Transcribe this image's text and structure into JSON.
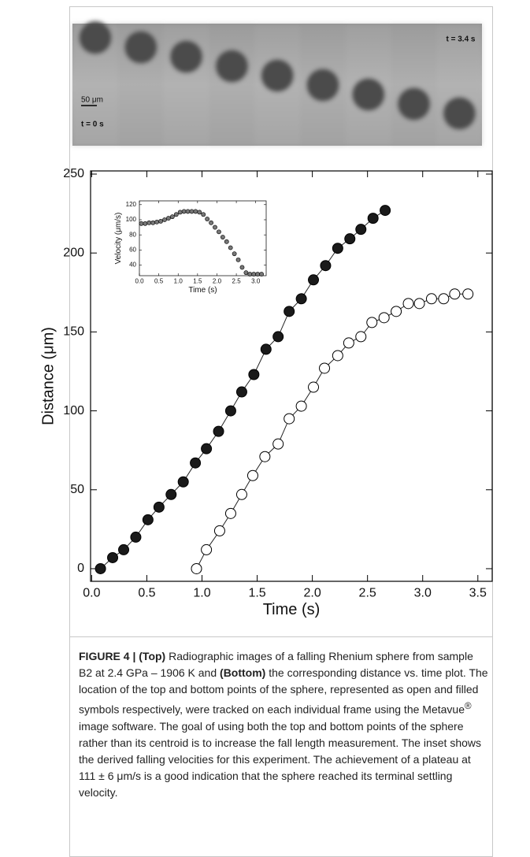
{
  "image_strip": {
    "time_end": "t = 3.4 s",
    "scale": "50 μm",
    "time_start": "t = 0 s"
  },
  "chart_data": [
    {
      "type": "line",
      "xlabel": "Time (s)",
      "ylabel": "Distance (μm)",
      "xlim": [
        -0.01,
        3.63
      ],
      "ylim": [
        -8,
        252
      ],
      "xticks": [
        {
          "value": 0,
          "label": "0.0"
        },
        {
          "value": 0.5,
          "label": "0.5"
        },
        {
          "value": 1,
          "label": "1.0"
        },
        {
          "value": 1.5,
          "label": "1.5"
        },
        {
          "value": 2,
          "label": "2.0"
        },
        {
          "value": 2.5,
          "label": "2.5"
        },
        {
          "value": 3,
          "label": "3.0"
        },
        {
          "value": 3.5,
          "label": "3.5"
        }
      ],
      "yticks": [
        0,
        50,
        100,
        150,
        200,
        250
      ],
      "lines": true,
      "series": [
        {
          "fill": "#1a1a1a",
          "x": [
            0.08,
            0.19,
            0.29,
            0.4,
            0.51,
            0.61,
            0.72,
            0.83,
            0.94,
            1.04,
            1.15,
            1.26,
            1.36,
            1.47,
            1.58,
            1.69,
            1.79,
            1.9,
            2.01,
            2.12,
            2.23,
            2.34,
            2.44,
            2.55,
            2.66
          ],
          "values": [
            0,
            7,
            12,
            20,
            31,
            39,
            47,
            55,
            67,
            76,
            87,
            100,
            112,
            123,
            139,
            147,
            163,
            171,
            183,
            192,
            203,
            209,
            215,
            222,
            227
          ]
        },
        {
          "fill": "#ffffff",
          "x": [
            0.95,
            1.04,
            1.16,
            1.26,
            1.36,
            1.46,
            1.57,
            1.69,
            1.79,
            1.9,
            2.01,
            2.11,
            2.23,
            2.33,
            2.44,
            2.54,
            2.65,
            2.76,
            2.87,
            2.97,
            3.08,
            3.19,
            3.29,
            3.41
          ],
          "values": [
            0,
            12,
            24,
            35,
            47,
            59,
            71,
            79,
            95,
            103,
            115,
            127,
            135,
            143,
            147,
            156,
            159,
            163,
            168,
            168,
            171,
            171,
            174,
            174
          ]
        }
      ]
    },
    {
      "type": "scatter",
      "xlabel": "Time (s)",
      "ylabel": "Velocity (μm/s)",
      "xlim": [
        0,
        3.27
      ],
      "ylim": [
        26,
        125
      ],
      "xticks": [
        {
          "value": 0,
          "label": "0.0"
        },
        {
          "value": 0.5,
          "label": "0.5"
        },
        {
          "value": 1,
          "label": "1.0"
        },
        {
          "value": 1.5,
          "label": "1.5"
        },
        {
          "value": 2,
          "label": "2.0"
        },
        {
          "value": 2.5,
          "label": "2.5"
        },
        {
          "value": 3,
          "label": "3.0"
        }
      ],
      "yticks": [
        40,
        60,
        80,
        100,
        120
      ],
      "lines": false,
      "series": [
        {
          "fill": "#777777",
          "x": [
            0.05,
            0.15,
            0.25,
            0.35,
            0.45,
            0.55,
            0.65,
            0.75,
            0.85,
            0.95,
            1.05,
            1.15,
            1.25,
            1.35,
            1.45,
            1.55,
            1.65,
            1.75,
            1.85,
            1.95,
            2.05,
            2.15,
            2.25,
            2.35,
            2.45,
            2.55,
            2.65,
            2.75,
            2.85,
            2.95,
            3.05,
            3.15
          ],
          "values": [
            95,
            95,
            96,
            96,
            97,
            98,
            100,
            102,
            104,
            107,
            110,
            111,
            111,
            111,
            111,
            110,
            107,
            101,
            96,
            90,
            84,
            77,
            71,
            63,
            55,
            47,
            37,
            30,
            28,
            28,
            28,
            28
          ]
        }
      ]
    }
  ],
  "caption": {
    "label": "FIGURE 4 |",
    "top": "(Top)",
    "text_1": " Radiographic images of a falling Rhenium sphere from sample B2 at 2.4 GPa – 1906 K and ",
    "bottom": "(Bottom)",
    "text_2": " the corresponding distance vs. time plot. The location of the top and bottom points of the sphere, represented as open and filled symbols respectively, were tracked on each individual frame using the Metavue",
    "registered": "®",
    "text_3": " image software. The goal of using both the top and bottom points of the sphere rather than its centroid is to increase the fall length measurement. The inset shows the derived falling velocities for this experiment. The achievement of a plateau at 111 ± 6 μm/s is a good indication that the sphere reached its terminal settling velocity."
  }
}
